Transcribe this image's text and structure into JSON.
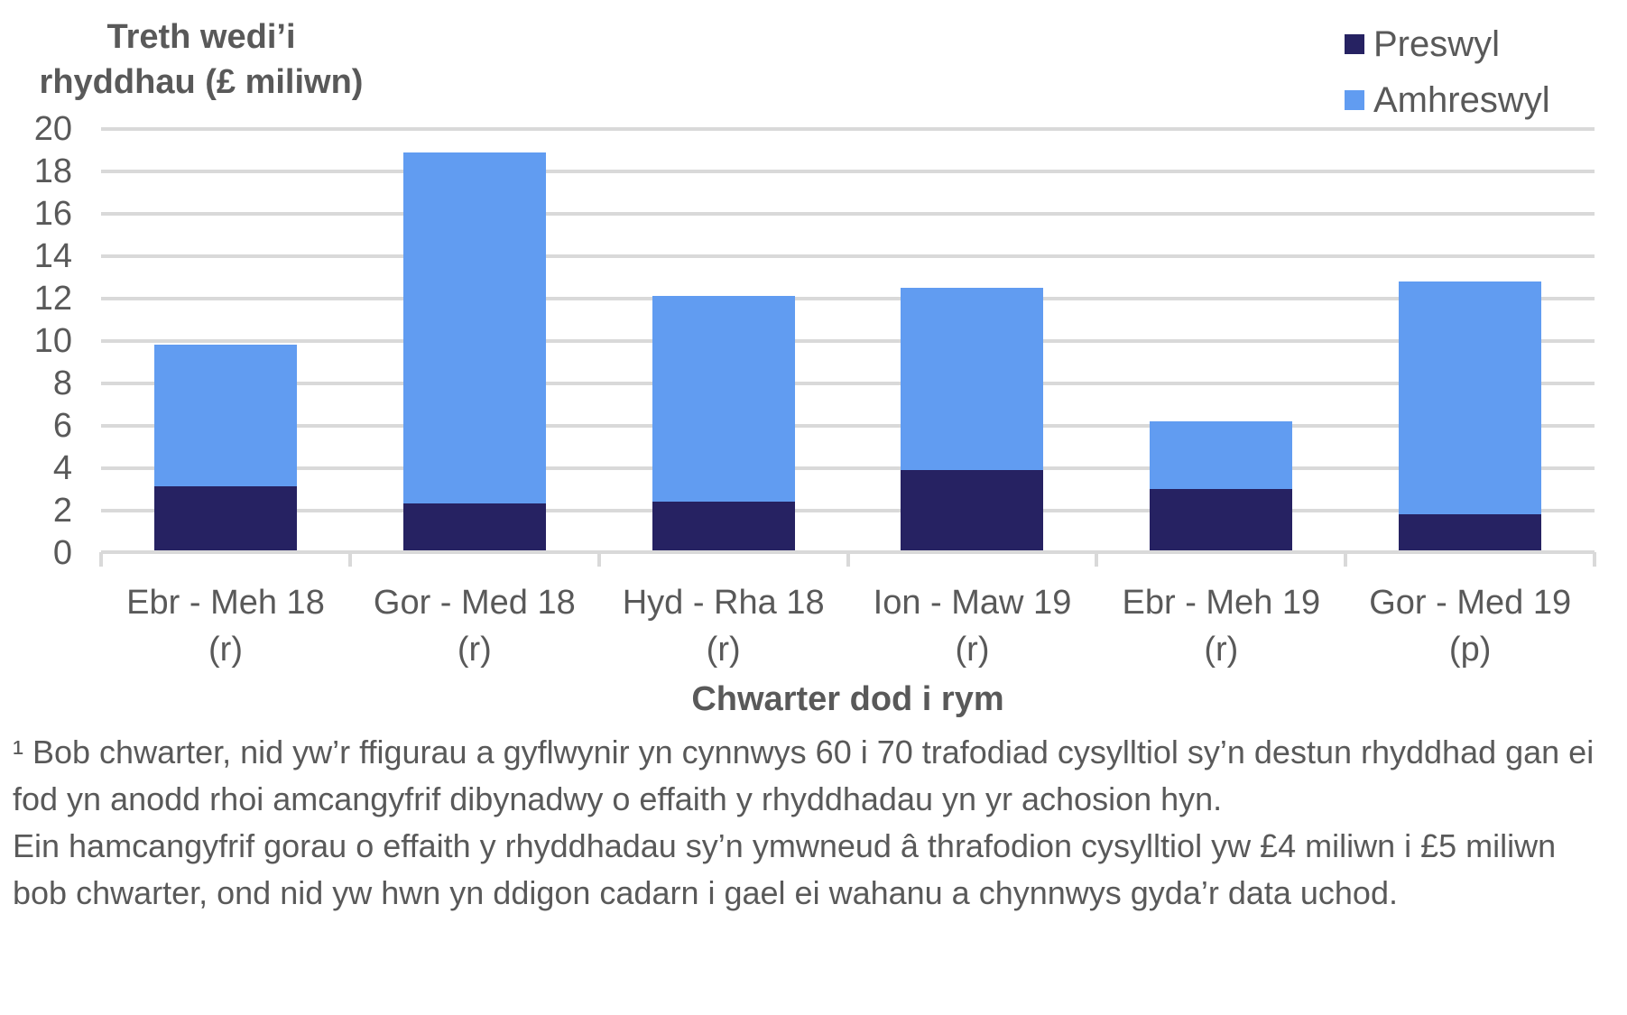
{
  "chart_data": {
    "type": "bar",
    "stacked": true,
    "title": "",
    "ylabel": "Treth wedi'i rhyddhau (£ miliwn)",
    "xlabel": "Chwarter dod i rym",
    "ylim": [
      0,
      20
    ],
    "yticks": [
      0,
      2,
      4,
      6,
      8,
      10,
      12,
      14,
      16,
      18,
      20
    ],
    "grid": true,
    "legend_position": "top-right",
    "categories": [
      "Ebr - Meh 18 (r)",
      "Gor - Med 18 (r)",
      "Hyd - Rha 18 (r)",
      "Ion - Maw 19 (r)",
      "Ebr - Meh 19 (r)",
      "Gor - Med 19 (p)"
    ],
    "series": [
      {
        "name": "Preswyl",
        "color": "#262262",
        "values": [
          3.1,
          2.3,
          2.4,
          3.9,
          3.0,
          1.8
        ]
      },
      {
        "name": "Amhreswyl",
        "color": "#619cf1",
        "values": [
          6.7,
          16.6,
          9.7,
          8.6,
          3.2,
          11.0
        ]
      }
    ],
    "totals": [
      9.8,
      18.9,
      12.1,
      12.5,
      6.2,
      12.8
    ]
  },
  "axis": {
    "ytitle_line1": "Treth wedi’i",
    "ytitle_line2": "rhyddhau (£ miliwn)",
    "xtitle": "Chwarter dod i rym",
    "yticks": [
      "20",
      "18",
      "16",
      "14",
      "12",
      "10",
      "8",
      "6",
      "4",
      "2",
      "0"
    ],
    "xlabels": [
      {
        "line1": "Ebr - Meh 18",
        "line2": "(r)"
      },
      {
        "line1": "Gor - Med 18",
        "line2": "(r)"
      },
      {
        "line1": "Hyd - Rha 18",
        "line2": "(r)"
      },
      {
        "line1": "Ion - Maw 19",
        "line2": "(r)"
      },
      {
        "line1": "Ebr - Meh 19",
        "line2": "(r)"
      },
      {
        "line1": "Gor - Med 19",
        "line2": "(p)"
      }
    ]
  },
  "legend": {
    "items": [
      {
        "label": "Preswyl",
        "color": "#262262"
      },
      {
        "label": "Amhreswyl",
        "color": "#619cf1"
      }
    ]
  },
  "notes": {
    "note1": "¹ Bob chwarter, nid yw’r ffigurau a gyflwynir yn cynnwys 60 i 70 trafodiad cysylltiol sy’n destun rhyddhad gan ei fod yn anodd rhoi amcangyfrif dibynadwy o effaith y rhyddhadau yn yr achosion hyn.",
    "note2": "Ein hamcangyfrif gorau o effaith y rhyddhadau sy’n ymwneud â thrafodion cysylltiol yw £4 miliwn i £5 miliwn bob chwarter, ond nid yw hwn yn ddigon cadarn i gael ei wahanu a chynnwys gyda’r data uchod."
  }
}
